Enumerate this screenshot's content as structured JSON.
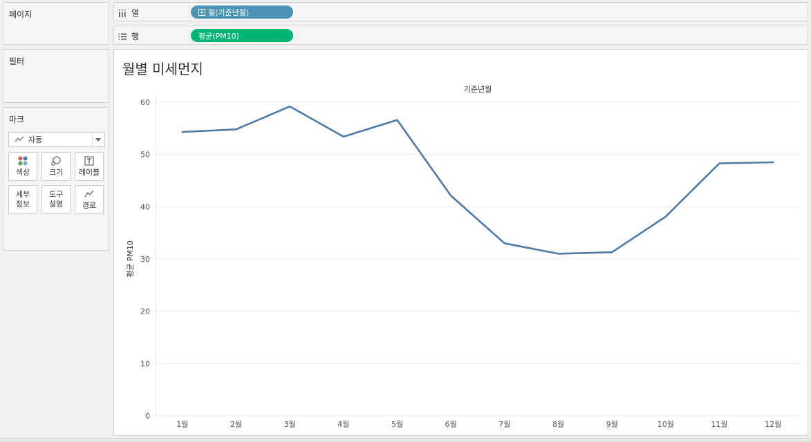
{
  "cards": {
    "pages": {
      "title": "페이지"
    },
    "filters": {
      "title": "필터"
    },
    "marks": {
      "title": "마크",
      "mark_type": "자동",
      "buttons": [
        {
          "label": "색상",
          "icon": "color-icon"
        },
        {
          "label": "크기",
          "icon": "size-icon"
        },
        {
          "label": "레이블",
          "icon": "label-icon"
        },
        {
          "label": "세부\n정보",
          "icon": "detail-icon"
        },
        {
          "label": "도구\n설명",
          "icon": "tooltip-icon"
        },
        {
          "label": "경로",
          "icon": "path-icon"
        }
      ]
    }
  },
  "shelves": {
    "columns": {
      "label": "열",
      "pill": "월(기준년월)",
      "pill_color": "#4b94b5"
    },
    "rows": {
      "label": "행",
      "pill": "평균(PM10)",
      "pill_color": "#00b473"
    }
  },
  "sheet": {
    "title": "월별 미세먼지"
  },
  "chart_data": {
    "type": "line",
    "title": "",
    "header": "기준년월",
    "xlabel": "",
    "ylabel": "평균 PM10",
    "categories": [
      "1월",
      "2월",
      "3월",
      "4월",
      "5월",
      "6월",
      "7월",
      "8월",
      "9월",
      "10월",
      "11월",
      "12월"
    ],
    "values": [
      54.3,
      54.8,
      59.2,
      53.4,
      56.6,
      42.1,
      33.0,
      31.0,
      31.3,
      38.1,
      48.3,
      48.5
    ],
    "ylim": [
      0,
      60
    ],
    "yticks": [
      0,
      10,
      20,
      30,
      40,
      50,
      60
    ],
    "grid": true,
    "line_color": "#4e79a7"
  }
}
